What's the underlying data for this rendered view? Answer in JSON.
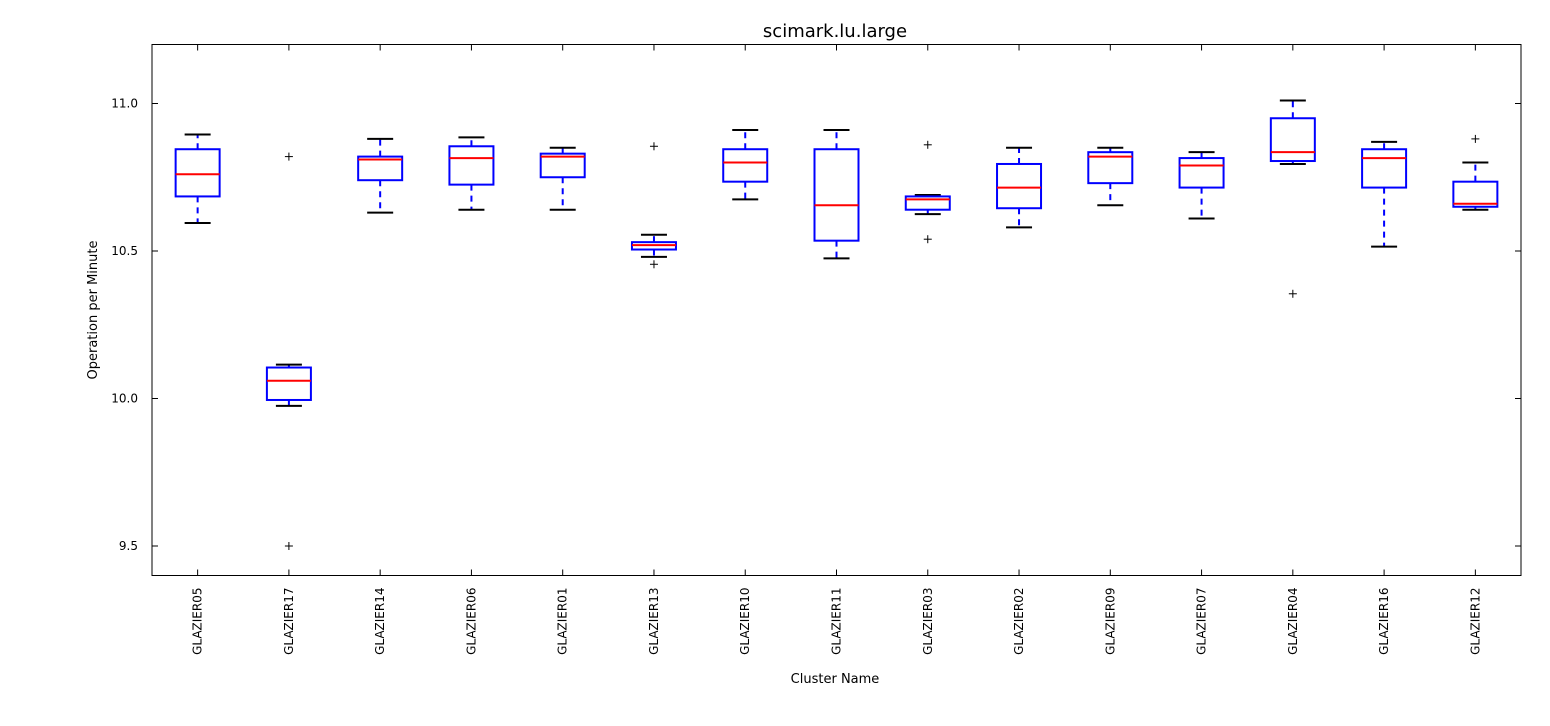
{
  "chart_data": {
    "type": "box",
    "title": "scimark.lu.large",
    "xlabel": "Cluster Name",
    "ylabel": "Operation per Minute",
    "ylim": [
      9.4,
      11.2
    ],
    "yticks": [
      "9.5",
      "10.0",
      "10.5",
      "11.0"
    ],
    "grid": false,
    "colors": {
      "box": "#0000ff",
      "median": "#ff0000",
      "whisker_cap": "#000000",
      "outlier": "#000000"
    },
    "categories": [
      "GLAZIER05",
      "GLAZIER17",
      "GLAZIER14",
      "GLAZIER06",
      "GLAZIER01",
      "GLAZIER13",
      "GLAZIER10",
      "GLAZIER11",
      "GLAZIER03",
      "GLAZIER02",
      "GLAZIER09",
      "GLAZIER07",
      "GLAZIER04",
      "GLAZIER16",
      "GLAZIER12"
    ],
    "boxes": [
      {
        "q1": 10.685,
        "median": 10.76,
        "q3": 10.845,
        "whislo": 10.595,
        "whishi": 10.895,
        "fliers": []
      },
      {
        "q1": 9.995,
        "median": 10.06,
        "q3": 10.105,
        "whislo": 9.975,
        "whishi": 10.115,
        "fliers": [
          10.82,
          9.5
        ]
      },
      {
        "q1": 10.74,
        "median": 10.81,
        "q3": 10.82,
        "whislo": 10.63,
        "whishi": 10.88,
        "fliers": []
      },
      {
        "q1": 10.725,
        "median": 10.815,
        "q3": 10.855,
        "whislo": 10.64,
        "whishi": 10.885,
        "fliers": []
      },
      {
        "q1": 10.75,
        "median": 10.82,
        "q3": 10.83,
        "whislo": 10.64,
        "whishi": 10.85,
        "fliers": []
      },
      {
        "q1": 10.505,
        "median": 10.52,
        "q3": 10.53,
        "whislo": 10.48,
        "whishi": 10.555,
        "fliers": [
          10.855,
          10.455
        ]
      },
      {
        "q1": 10.735,
        "median": 10.8,
        "q3": 10.845,
        "whislo": 10.675,
        "whishi": 10.91,
        "fliers": []
      },
      {
        "q1": 10.535,
        "median": 10.655,
        "q3": 10.845,
        "whislo": 10.475,
        "whishi": 10.91,
        "fliers": []
      },
      {
        "q1": 10.64,
        "median": 10.675,
        "q3": 10.685,
        "whislo": 10.625,
        "whishi": 10.69,
        "fliers": [
          10.86,
          10.54
        ]
      },
      {
        "q1": 10.645,
        "median": 10.715,
        "q3": 10.795,
        "whislo": 10.58,
        "whishi": 10.85,
        "fliers": []
      },
      {
        "q1": 10.73,
        "median": 10.82,
        "q3": 10.835,
        "whislo": 10.655,
        "whishi": 10.85,
        "fliers": []
      },
      {
        "q1": 10.715,
        "median": 10.79,
        "q3": 10.815,
        "whislo": 10.61,
        "whishi": 10.835,
        "fliers": []
      },
      {
        "q1": 10.805,
        "median": 10.835,
        "q3": 10.95,
        "whislo": 10.795,
        "whishi": 11.01,
        "fliers": [
          10.355
        ]
      },
      {
        "q1": 10.715,
        "median": 10.815,
        "q3": 10.845,
        "whislo": 10.515,
        "whishi": 10.87,
        "fliers": []
      },
      {
        "q1": 10.65,
        "median": 10.66,
        "q3": 10.735,
        "whislo": 10.64,
        "whishi": 10.8,
        "fliers": [
          10.88
        ]
      }
    ]
  }
}
